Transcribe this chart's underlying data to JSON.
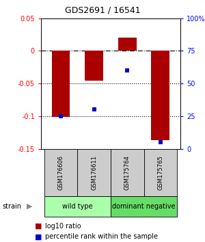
{
  "title": "GDS2691 / 16541",
  "samples": [
    "GSM176606",
    "GSM176611",
    "GSM175764",
    "GSM175765"
  ],
  "log10_ratio": [
    -0.101,
    -0.046,
    0.02,
    -0.137
  ],
  "percentile_rank": [
    25,
    30,
    60,
    5
  ],
  "ylim_left": [
    -0.15,
    0.05
  ],
  "ylim_right": [
    0,
    100
  ],
  "yticks_left": [
    -0.15,
    -0.1,
    -0.05,
    0.0,
    0.05
  ],
  "ytick_labels_left": [
    "-0.15",
    "-0.1",
    "-0.05",
    "0",
    "0.05"
  ],
  "yticks_right": [
    0,
    25,
    50,
    75,
    100
  ],
  "ytick_labels_right": [
    "0",
    "25",
    "50",
    "75",
    "100%"
  ],
  "hlines_dotted": [
    -0.05,
    -0.1
  ],
  "hline_dashed": 0.0,
  "groups": [
    {
      "label": "wild type",
      "indices": [
        0,
        1
      ],
      "color": "#aaffaa"
    },
    {
      "label": "dominant negative",
      "indices": [
        2,
        3
      ],
      "color": "#66dd66"
    }
  ],
  "bar_color": "#aa0000",
  "scatter_color": "#0000cc",
  "bar_width": 0.55,
  "bg_color": "#FFFFFF",
  "label_area_color": "#cccccc",
  "legend_red_label": "log10 ratio",
  "legend_blue_label": "percentile rank within the sample",
  "title_fontsize": 9,
  "tick_fontsize": 7,
  "sample_fontsize": 6,
  "group_fontsize": 7,
  "legend_fontsize": 7
}
